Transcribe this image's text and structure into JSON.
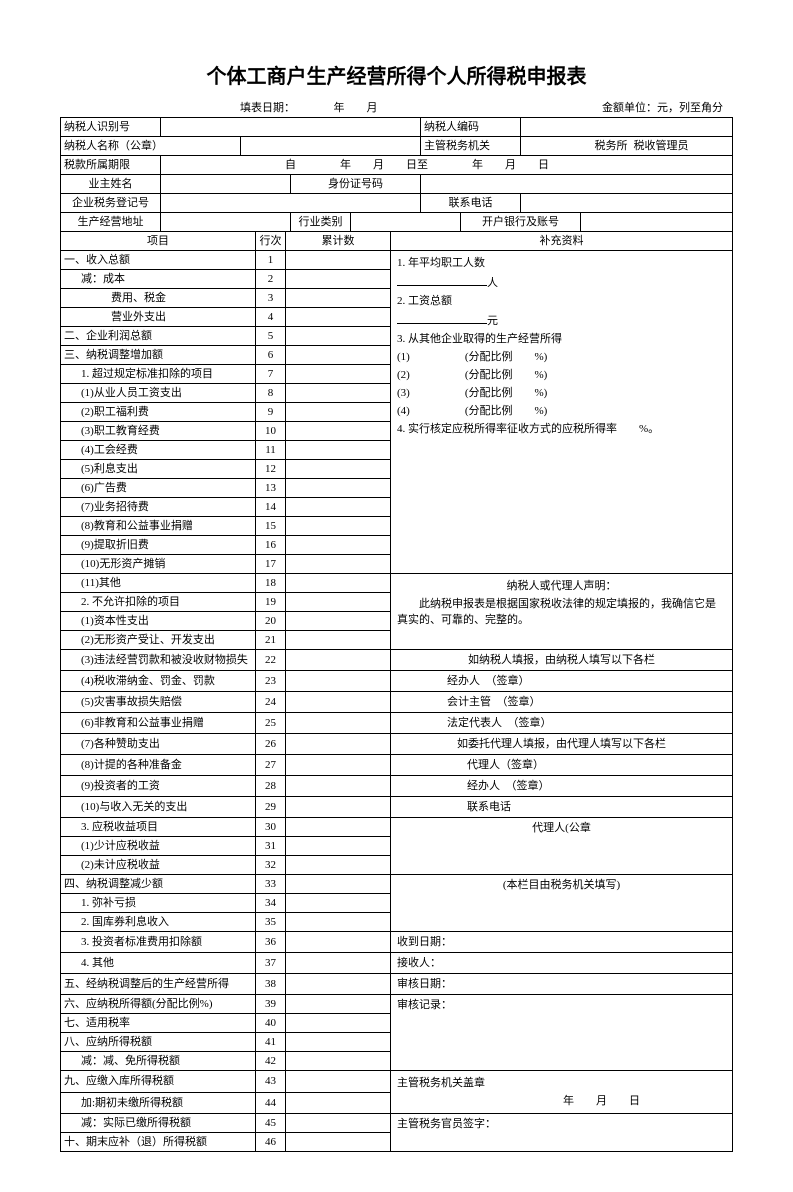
{
  "title": "个体工商户生产经营所得个人所得税申报表",
  "header": {
    "fill_date_label": "填表日期：",
    "year": "年",
    "month": "月",
    "unit_label": "金额单位：元，列至角分"
  },
  "info": {
    "taxpayer_id_label": "纳税人识别号",
    "taxpayer_code_label": "纳税人编码",
    "taxpayer_name_label": "纳税人名称（公章）",
    "authority_label": "主管税务机关",
    "tax_office_label": "税务所",
    "tax_admin_label": "税收管理员",
    "period_label": "税款所属期限",
    "period_from": "自",
    "period_year": "年",
    "period_month": "月",
    "period_day_to": "日至",
    "period_year2": "年",
    "period_month2": "月",
    "period_day": "日",
    "owner_label": "业主姓名",
    "id_no_label": "身份证号码",
    "reg_no_label": "企业税务登记号",
    "phone_label": "联系电话",
    "address_label": "生产经营地址",
    "industry_label": "行业类别",
    "bank_label": "开户银行及账号"
  },
  "cols": {
    "item": "项目",
    "row": "行次",
    "cum": "累计数",
    "supp": "补充资料"
  },
  "rows": [
    {
      "n": "1",
      "t": "一、收入总额",
      "lvl": 0
    },
    {
      "n": "2",
      "t": "减：成本",
      "lvl": 1
    },
    {
      "n": "3",
      "t": "费用、税金",
      "lvl": 2
    },
    {
      "n": "4",
      "t": "营业外支出",
      "lvl": 2
    },
    {
      "n": "5",
      "t": "二、企业利润总额",
      "lvl": 0
    },
    {
      "n": "6",
      "t": "三、纳税调整增加额",
      "lvl": 0
    },
    {
      "n": "7",
      "t": "1. 超过规定标准扣除的项目",
      "lvl": 1
    },
    {
      "n": "8",
      "t": "(1)从业人员工资支出",
      "lvl": 1
    },
    {
      "n": "9",
      "t": "(2)职工福利费",
      "lvl": 1
    },
    {
      "n": "10",
      "t": "(3)职工教育经费",
      "lvl": 1
    },
    {
      "n": "11",
      "t": "(4)工会经费",
      "lvl": 1
    },
    {
      "n": "12",
      "t": "(5)利息支出",
      "lvl": 1
    },
    {
      "n": "13",
      "t": "(6)广告费",
      "lvl": 1
    },
    {
      "n": "14",
      "t": "(7)业务招待费",
      "lvl": 1
    },
    {
      "n": "15",
      "t": "(8)教育和公益事业捐赠",
      "lvl": 1
    },
    {
      "n": "16",
      "t": "(9)提取折旧费",
      "lvl": 1
    },
    {
      "n": "17",
      "t": "(10)无形资产摊销",
      "lvl": 1
    },
    {
      "n": "18",
      "t": "(11)其他",
      "lvl": 1
    },
    {
      "n": "19",
      "t": "2. 不允许扣除的项目",
      "lvl": 1
    },
    {
      "n": "20",
      "t": "(1)资本性支出",
      "lvl": 1
    },
    {
      "n": "21",
      "t": "(2)无形资产受让、开发支出",
      "lvl": 1
    },
    {
      "n": "22",
      "t": "(3)违法经营罚款和被没收财物损失",
      "lvl": 1
    },
    {
      "n": "23",
      "t": "(4)税收滞纳金、罚金、罚款",
      "lvl": 1
    },
    {
      "n": "24",
      "t": "(5)灾害事故损失赔偿",
      "lvl": 1
    },
    {
      "n": "25",
      "t": "(6)非教育和公益事业捐赠",
      "lvl": 1
    },
    {
      "n": "26",
      "t": "(7)各种赞助支出",
      "lvl": 1
    },
    {
      "n": "27",
      "t": "(8)计提的各种准备金",
      "lvl": 1
    },
    {
      "n": "28",
      "t": "(9)投资者的工资",
      "lvl": 1
    },
    {
      "n": "29",
      "t": "(10)与收入无关的支出",
      "lvl": 1
    },
    {
      "n": "30",
      "t": "3. 应税收益项目",
      "lvl": 1
    },
    {
      "n": "31",
      "t": "(1)少计应税收益",
      "lvl": 1
    },
    {
      "n": "32",
      "t": "(2)未计应税收益",
      "lvl": 1
    },
    {
      "n": "33",
      "t": "四、纳税调整减少额",
      "lvl": 0
    },
    {
      "n": "34",
      "t": "1. 弥补亏损",
      "lvl": 1
    },
    {
      "n": "35",
      "t": "2. 国库券利息收入",
      "lvl": 1
    },
    {
      "n": "36",
      "t": "3. 投资者标准费用扣除额",
      "lvl": 1
    },
    {
      "n": "37",
      "t": "4. 其他",
      "lvl": 1
    },
    {
      "n": "38",
      "t": "五、经纳税调整后的生产经营所得",
      "lvl": 0
    },
    {
      "n": "39",
      "t": "六、应纳税所得额(分配比例%)",
      "lvl": 0
    },
    {
      "n": "40",
      "t": "七、适用税率",
      "lvl": 0
    },
    {
      "n": "41",
      "t": "八、应纳所得税额",
      "lvl": 0
    },
    {
      "n": "42",
      "t": "减：减、免所得税额",
      "lvl": 1
    },
    {
      "n": "43",
      "t": "九、应缴入库所得税额",
      "lvl": 0
    },
    {
      "n": "44",
      "t": "加:期初未缴所得税额",
      "lvl": 1
    },
    {
      "n": "45",
      "t": "减：实际已缴所得税额",
      "lvl": 1
    },
    {
      "n": "46",
      "t": "十、期末应补（退）所得税额",
      "lvl": 0
    }
  ],
  "supp": {
    "s1": "1. 年平均职工人数",
    "s1u": "人",
    "s2": "2. 工资总额",
    "s2u": "元",
    "s3": "3. 从其他企业取得的生产经营所得",
    "s3_1": "(1)",
    "s3_2": "(2)",
    "s3_3": "(3)",
    "s3_4": "(4)",
    "ratio": "(分配比例　　%)",
    "s4": "4. 实行核定应税所得率征收方式的应税所得率　　%。",
    "decl_title": "纳税人或代理人声明：",
    "decl_body": "此纳税申报表是根据国家税收法律的规定填报的，我确信它是真实的、可靠的、完整的。",
    "self_fill": "如纳税人填报，由纳税人填写以下各栏",
    "handler": "经办人　（签章）",
    "acct": "会计主管　（签章）",
    "legal": "法定代表人　（签章）",
    "agent_fill": "如委托代理人填报，由代理人填写以下各栏",
    "agent": "代理人（签章）",
    "agent_handler": "经办人　（签章）",
    "agent_phone": "联系电话",
    "agent_seal": "代理人(公章",
    "office_fill": "(本栏目由税务机关填写)",
    "recv_date": "收到日期：",
    "recv_by": "接收人：",
    "audit_date": "审核日期：",
    "audit_rec": "审核记录：",
    "auth_seal": "主管税务机关盖章",
    "date_ymd": "年　　月　　日",
    "officer_sign": "主管税务官员签字："
  }
}
